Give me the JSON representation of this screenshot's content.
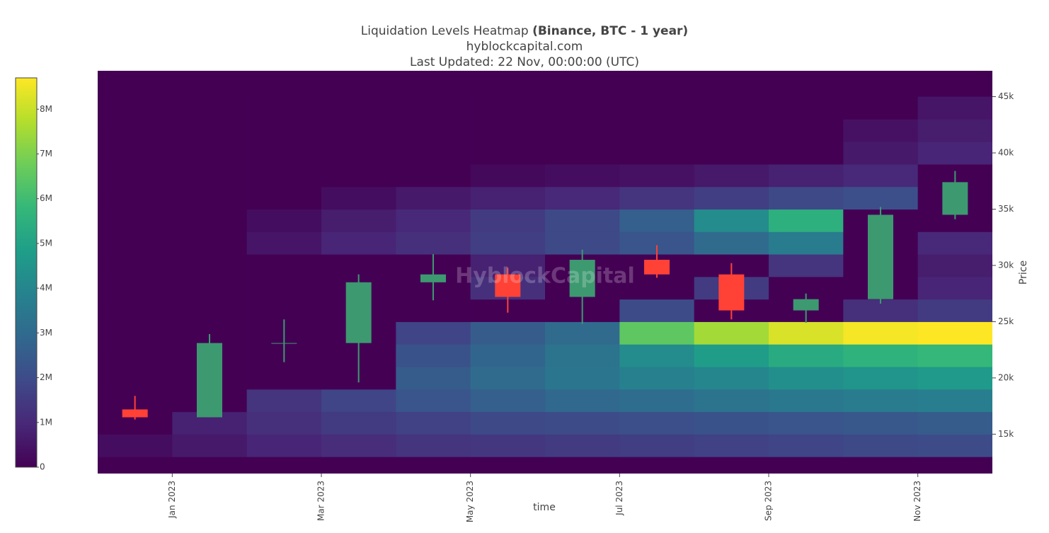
{
  "chart_data": {
    "type": "heatmap",
    "title": "Liquidation Levels Heatmap",
    "title_emphasis": "(Binance, BTC - 1 year)",
    "subtitle": "hyblockcapital.com",
    "updated": "Last Updated: 22 Nov, 00:00:00 (UTC)",
    "watermark": "HyblockCapital",
    "x_label": "time",
    "y_label": "Price",
    "colorscale": "Viridis",
    "background": "#440154",
    "x": [
      "2022-12",
      "2023-01",
      "2023-02",
      "2023-03",
      "2023-04",
      "2023-05",
      "2023-06",
      "2023-07",
      "2023-08",
      "2023-09",
      "2023-10",
      "2023-11"
    ],
    "xlim": [
      "2022-12",
      "2023-12"
    ],
    "xticks": [
      {
        "value": "2023-01",
        "label": "Jan 2023"
      },
      {
        "value": "2023-03",
        "label": "Mar 2023"
      },
      {
        "value": "2023-05",
        "label": "May 2023"
      },
      {
        "value": "2023-07",
        "label": "Jul 2023"
      },
      {
        "value": "2023-09",
        "label": "Sep 2023"
      },
      {
        "value": "2023-11",
        "label": "Nov 2023"
      }
    ],
    "ylim": [
      11500,
      47300
    ],
    "yticks": [
      {
        "value": 15000,
        "label": "15k"
      },
      {
        "value": 20000,
        "label": "20k"
      },
      {
        "value": 25000,
        "label": "25k"
      },
      {
        "value": 30000,
        "label": "30k"
      },
      {
        "value": 35000,
        "label": "35k"
      },
      {
        "value": 40000,
        "label": "40k"
      },
      {
        "value": 45000,
        "label": "45k"
      }
    ],
    "y_levels": [
      14000,
      16000,
      18000,
      20000,
      22000,
      24000,
      26000,
      28000,
      30000,
      32000,
      34000,
      36000,
      38000,
      40000,
      42000,
      44000
    ],
    "y_step": 2000,
    "z": [
      [
        300000,
        600000,
        900000,
        1100000,
        1300000,
        1400000,
        1500000,
        1600000,
        1700000,
        1800000,
        1900000,
        2000000
      ],
      [
        0,
        800000,
        1200000,
        1500000,
        1700000,
        1900000,
        2000000,
        2100000,
        2200000,
        2300000,
        2400000,
        2500000
      ],
      [
        0,
        0,
        1300000,
        1800000,
        2300000,
        2600000,
        2900000,
        3100000,
        3300000,
        3500000,
        3600000,
        3700000
      ],
      [
        0,
        0,
        0,
        0,
        2500000,
        3000000,
        3400000,
        3800000,
        4000000,
        4300000,
        4500000,
        4700000
      ],
      [
        0,
        0,
        0,
        0,
        2200000,
        2800000,
        3300000,
        4200000,
        4800000,
        5300000,
        5600000,
        5800000
      ],
      [
        0,
        0,
        0,
        0,
        1800000,
        2500000,
        3000000,
        6500000,
        7500000,
        8200000,
        8600000,
        8700000
      ],
      [
        0,
        0,
        0,
        0,
        0,
        0,
        0,
        2000000,
        0,
        0,
        1200000,
        1500000
      ],
      [
        0,
        0,
        0,
        0,
        0,
        1200000,
        0,
        0,
        1500000,
        0,
        0,
        900000
      ],
      [
        0,
        0,
        0,
        0,
        0,
        800000,
        0,
        0,
        0,
        1300000,
        0,
        700000
      ],
      [
        0,
        0,
        500000,
        900000,
        1200000,
        1600000,
        1900000,
        2300000,
        3000000,
        3600000,
        0,
        1000000
      ],
      [
        0,
        0,
        300000,
        700000,
        1000000,
        1500000,
        1900000,
        2600000,
        4200000,
        5500000,
        0,
        0
      ],
      [
        0,
        0,
        0,
        300000,
        600000,
        800000,
        1000000,
        1300000,
        1600000,
        1900000,
        2100000,
        0
      ],
      [
        0,
        0,
        0,
        0,
        0,
        200000,
        300000,
        400000,
        600000,
        800000,
        1000000,
        0
      ],
      [
        0,
        0,
        0,
        0,
        0,
        0,
        0,
        0,
        0,
        0,
        600000,
        900000
      ],
      [
        0,
        0,
        0,
        0,
        0,
        0,
        0,
        0,
        0,
        0,
        400000,
        700000
      ],
      [
        0,
        0,
        0,
        0,
        0,
        0,
        0,
        0,
        0,
        0,
        0,
        500000
      ]
    ],
    "zlim": [
      0,
      8700000
    ],
    "zticks": [
      0,
      {
        "value": 1000000,
        "label": "1M"
      },
      {
        "value": 2000000,
        "label": "2M"
      },
      {
        "value": 3000000,
        "label": "3M"
      },
      {
        "value": 4000000,
        "label": "4M"
      },
      {
        "value": 5000000,
        "label": "5M"
      },
      {
        "value": 6000000,
        "label": "6M"
      },
      {
        "value": 7000000,
        "label": "7M"
      },
      {
        "value": 8000000,
        "label": "8M"
      }
    ],
    "candles": {
      "increasing_color": "#3d9970",
      "decreasing_color": "#ff4136",
      "open": [
        17200,
        16500,
        23100,
        23100,
        28500,
        29200,
        27200,
        30500,
        29200,
        26000,
        27000,
        34500
      ],
      "high": [
        18400,
        23900,
        25200,
        29200,
        31000,
        29800,
        31400,
        31800,
        30200,
        27500,
        35200,
        38400
      ],
      "low": [
        16300,
        16500,
        21400,
        19600,
        26900,
        25800,
        24800,
        28900,
        25200,
        24900,
        26600,
        34100
      ],
      "close": [
        16500,
        23100,
        23100,
        28500,
        29200,
        27200,
        30500,
        29200,
        26000,
        27000,
        34500,
        37400
      ]
    }
  }
}
